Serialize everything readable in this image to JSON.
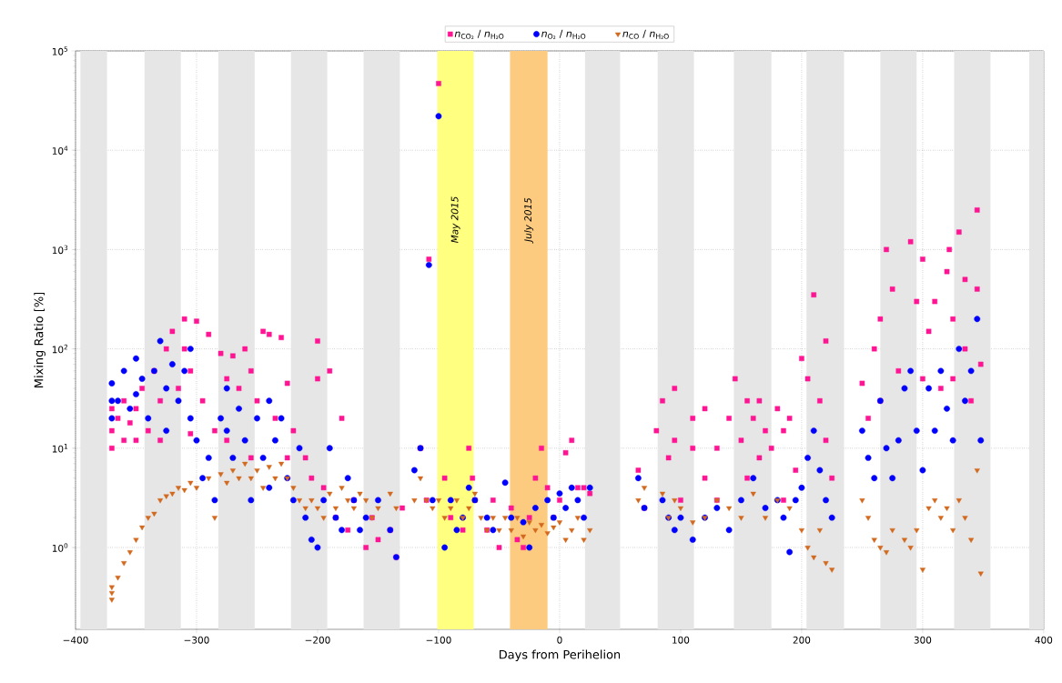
{
  "chart_data": {
    "type": "scatter",
    "xlabel": "Days from Perihelion",
    "ylabel": "Mixing Ratio [%]",
    "log": "y",
    "grid": true,
    "legend": "top",
    "xlim": [
      -400,
      400
    ],
    "ylim": [
      0.15,
      100000
    ],
    "xticks": [
      {
        "value": -400,
        "label": "−400"
      },
      {
        "value": -300,
        "label": "−300"
      },
      {
        "value": -200,
        "label": "−200"
      },
      {
        "value": -100,
        "label": "−100"
      },
      0,
      100,
      200,
      300,
      400
    ],
    "yticks": [
      {
        "value": 1,
        "label": "10$^{0}$"
      },
      {
        "value": 10,
        "label": "10$^{1}$"
      },
      {
        "value": 100,
        "label": "10$^{2}$"
      },
      {
        "value": 1000,
        "label": "10$^{3}$"
      },
      {
        "value": 10000,
        "label": "10$^{4}$"
      },
      {
        "value": 100000,
        "label": "10$^{5}$"
      }
    ],
    "bands": [
      {
        "axis": "x",
        "from": -396,
        "to": -374,
        "color": "#e6e6e6"
      },
      {
        "axis": "x",
        "from": -343,
        "to": -313,
        "color": "#e6e6e6"
      },
      {
        "axis": "x",
        "from": -282,
        "to": -252,
        "color": "#e6e6e6"
      },
      {
        "axis": "x",
        "from": -222,
        "to": -192,
        "color": "#e6e6e6"
      },
      {
        "axis": "x",
        "from": -162,
        "to": -132,
        "color": "#e6e6e6"
      },
      {
        "axis": "x",
        "from": -101,
        "to": -71,
        "color": "#ffff80",
        "label": "May 2015"
      },
      {
        "axis": "x",
        "from": -41,
        "to": -10,
        "color": "#fdcb80",
        "label": "July 2015"
      },
      {
        "axis": "x",
        "from": 21,
        "to": 50,
        "color": "#e6e6e6"
      },
      {
        "axis": "x",
        "from": 81,
        "to": 111,
        "color": "#e6e6e6"
      },
      {
        "axis": "x",
        "from": 144,
        "to": 175,
        "color": "#e6e6e6"
      },
      {
        "axis": "x",
        "from": 204,
        "to": 235,
        "color": "#e6e6e6"
      },
      {
        "axis": "x",
        "from": 265,
        "to": 295,
        "color": "#e6e6e6"
      },
      {
        "axis": "x",
        "from": 326,
        "to": 356,
        "color": "#e6e6e6"
      },
      {
        "axis": "x",
        "from": 388,
        "to": 400,
        "color": "#e6e6e6"
      }
    ],
    "series": [
      {
        "name": "*n*$_{CO₂}$ / *n*$_{H₂O}$",
        "color": "#ff1493",
        "marker": "square",
        "x": [
          -370,
          -370,
          -370,
          -365,
          -360,
          -360,
          -355,
          -350,
          -350,
          -345,
          -340,
          -335,
          -330,
          -330,
          -325,
          -320,
          -315,
          -310,
          -310,
          -305,
          -305,
          -300,
          -295,
          -290,
          -285,
          -280,
          -275,
          -275,
          -270,
          -265,
          -260,
          -255,
          -255,
          -250,
          -245,
          -240,
          -235,
          -230,
          -225,
          -225,
          -220,
          -210,
          -205,
          -200,
          -200,
          -195,
          -190,
          -185,
          -180,
          -175,
          -170,
          -160,
          -155,
          -150,
          -140,
          -135,
          -130,
          -115,
          -110,
          -108,
          -100,
          -95,
          -90,
          -80,
          -75,
          -72,
          -70,
          -60,
          -55,
          -50,
          -40,
          -35,
          -30,
          -25,
          -20,
          -15,
          -10,
          -5,
          0,
          5,
          10,
          15,
          20,
          25,
          65,
          70,
          80,
          85,
          90,
          95,
          95,
          100,
          110,
          110,
          120,
          120,
          130,
          130,
          140,
          145,
          150,
          155,
          155,
          160,
          165,
          165,
          170,
          175,
          180,
          185,
          185,
          190,
          195,
          200,
          205,
          210,
          215,
          220,
          220,
          225,
          250,
          255,
          260,
          265,
          265,
          270,
          275,
          280,
          290,
          295,
          300,
          300,
          305,
          310,
          315,
          320,
          322,
          325,
          325,
          330,
          335,
          335,
          340,
          345,
          345,
          348
        ],
        "values": [
          10,
          15,
          25,
          20,
          30,
          12,
          18,
          25,
          12,
          40,
          15,
          60,
          30,
          12,
          100,
          150,
          40,
          100,
          200,
          60,
          14,
          190,
          30,
          140,
          15,
          90,
          50,
          12,
          85,
          40,
          100,
          60,
          8,
          30,
          150,
          140,
          20,
          130,
          45,
          8,
          15,
          8,
          5,
          120,
          50,
          4,
          60,
          2,
          20,
          1.5,
          3,
          1,
          2,
          1.2,
          1.5,
          0.8,
          2.5,
          10,
          3,
          800,
          47000,
          5,
          2,
          1.5,
          10,
          5,
          3,
          1.5,
          3,
          1,
          2.5,
          1.2,
          1,
          2,
          5,
          10,
          4,
          2,
          3,
          9,
          12,
          4,
          4,
          3.5,
          6,
          2.5,
          15,
          30,
          8,
          40,
          12,
          3,
          10,
          20,
          25,
          5,
          10,
          3,
          20,
          50,
          12,
          30,
          5,
          20,
          30,
          8,
          15,
          10,
          25,
          15,
          3,
          20,
          6,
          80,
          50,
          350,
          30,
          120,
          12,
          5,
          45,
          20,
          100,
          200,
          30,
          1000,
          400,
          60,
          1200,
          300,
          800,
          50,
          150,
          300,
          40,
          600,
          1000,
          200,
          50,
          1500,
          500,
          100,
          30,
          2500,
          400,
          70
        ]
      },
      {
        "name": "*n*$_{O₂}$ / *n*$_{H₂O}$",
        "color": "#0000ff",
        "marker": "circle",
        "x": [
          -370,
          -370,
          -370,
          -365,
          -360,
          -355,
          -350,
          -350,
          -345,
          -340,
          -335,
          -330,
          -325,
          -325,
          -320,
          -315,
          -310,
          -305,
          -305,
          -300,
          -295,
          -290,
          -285,
          -280,
          -275,
          -275,
          -270,
          -265,
          -260,
          -255,
          -250,
          -245,
          -240,
          -240,
          -235,
          -230,
          -225,
          -220,
          -215,
          -210,
          -205,
          -200,
          -195,
          -190,
          -185,
          -180,
          -175,
          -170,
          -165,
          -160,
          -150,
          -140,
          -135,
          -120,
          -115,
          -108,
          -105,
          -100,
          -95,
          -90,
          -85,
          -80,
          -75,
          -70,
          -60,
          -55,
          -45,
          -40,
          -30,
          -25,
          -20,
          -10,
          -5,
          0,
          5,
          10,
          15,
          20,
          25,
          65,
          70,
          85,
          90,
          95,
          100,
          110,
          120,
          130,
          140,
          150,
          160,
          170,
          180,
          185,
          190,
          195,
          200,
          205,
          210,
          215,
          220,
          225,
          250,
          255,
          260,
          265,
          270,
          275,
          280,
          285,
          290,
          295,
          300,
          305,
          310,
          315,
          320,
          325,
          330,
          335,
          340,
          345,
          348
        ],
        "values": [
          45,
          20,
          30,
          30,
          60,
          25,
          80,
          35,
          50,
          20,
          60,
          120,
          40,
          15,
          70,
          30,
          60,
          20,
          100,
          12,
          5,
          8,
          3,
          20,
          40,
          15,
          8,
          25,
          12,
          3,
          20,
          8,
          30,
          4,
          12,
          20,
          5,
          3,
          10,
          2,
          1.2,
          1,
          3,
          10,
          2,
          1.5,
          5,
          3,
          1.5,
          2,
          3,
          1.5,
          0.8,
          6,
          10,
          700,
          3,
          22000,
          1,
          3,
          1.5,
          2,
          4,
          3,
          2,
          1.5,
          4.5,
          2,
          1.8,
          1,
          2.5,
          3,
          2,
          3.5,
          2.5,
          4,
          3,
          2,
          4,
          5,
          2.5,
          3,
          2,
          1.5,
          2,
          1.2,
          2,
          2.5,
          1.5,
          3,
          5,
          2.5,
          3,
          2,
          0.9,
          3,
          4,
          8,
          15,
          6,
          3,
          2,
          15,
          8,
          5,
          30,
          10,
          5,
          12,
          40,
          60,
          15,
          6,
          40,
          15,
          60,
          25,
          12,
          100,
          30,
          60,
          200,
          12
        ]
      },
      {
        "name": "*n*$_{CO}$ / *n*$_{H₂O}$",
        "color": "#d2691e",
        "marker": "triangle",
        "x": [
          -370,
          -370,
          -370,
          -365,
          -360,
          -355,
          -350,
          -345,
          -340,
          -335,
          -330,
          -325,
          -320,
          -315,
          -310,
          -305,
          -300,
          -290,
          -285,
          -280,
          -275,
          -270,
          -265,
          -260,
          -255,
          -250,
          -245,
          -240,
          -235,
          -230,
          -225,
          -220,
          -215,
          -210,
          -205,
          -200,
          -195,
          -190,
          -185,
          -180,
          -175,
          -170,
          -165,
          -160,
          -155,
          -150,
          -140,
          -135,
          -120,
          -115,
          -110,
          -105,
          -100,
          -95,
          -90,
          -85,
          -80,
          -75,
          -70,
          -65,
          -60,
          -55,
          -50,
          -45,
          -40,
          -35,
          -30,
          -25,
          -20,
          -15,
          -10,
          -5,
          0,
          5,
          10,
          15,
          20,
          25,
          65,
          70,
          85,
          90,
          95,
          100,
          110,
          120,
          130,
          140,
          150,
          160,
          170,
          180,
          190,
          200,
          205,
          210,
          215,
          220,
          225,
          250,
          255,
          260,
          265,
          270,
          275,
          285,
          290,
          295,
          300,
          305,
          310,
          315,
          320,
          325,
          330,
          335,
          340,
          345,
          348
        ],
        "values": [
          0.3,
          0.4,
          0.35,
          0.5,
          0.7,
          0.9,
          1.2,
          1.6,
          2,
          2.2,
          3,
          3.3,
          3.5,
          4,
          3.8,
          4.5,
          4,
          5,
          2,
          5.5,
          4.5,
          6,
          5,
          7,
          5,
          6,
          4,
          6.5,
          5,
          7,
          5,
          4,
          3,
          2.5,
          3,
          2.5,
          2,
          3.5,
          2.5,
          4,
          3,
          2.5,
          3.5,
          3,
          2,
          2.5,
          3.5,
          2.5,
          3,
          5,
          3,
          2.5,
          3,
          2,
          2.5,
          3,
          2,
          2.5,
          3.5,
          2,
          1.5,
          2,
          1.5,
          2,
          1.5,
          2,
          1.3,
          1.8,
          1.5,
          1.7,
          1.4,
          1.6,
          1.8,
          1.2,
          1.5,
          2,
          1.2,
          1.5,
          3,
          4,
          3.5,
          2,
          3,
          2.5,
          1.8,
          2,
          3,
          2.5,
          2,
          3.5,
          2,
          3,
          2.5,
          1.5,
          1,
          0.8,
          1.5,
          0.7,
          0.6,
          3,
          2,
          1.2,
          1,
          0.9,
          1.5,
          1.2,
          1,
          1.5,
          0.6,
          2.5,
          3,
          2,
          2.5,
          1.5,
          3,
          2,
          1.2,
          6,
          0.55
        ]
      }
    ]
  }
}
